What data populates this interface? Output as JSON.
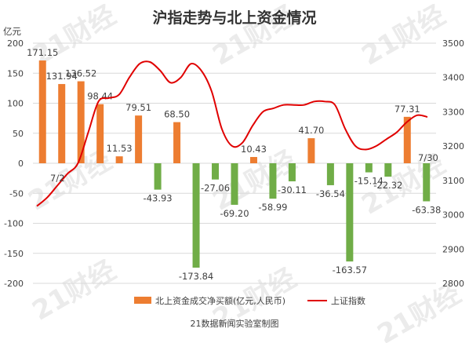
{
  "chart_data": {
    "type": "bar",
    "title": "沪指走势与北上资金情况",
    "source": "21数据新闻实验室制图",
    "watermark": "21财经",
    "left_axis": {
      "unit_label": "亿元",
      "ylim": [
        -200,
        200
      ],
      "ticks": [
        200,
        150,
        100,
        50,
        0,
        -50,
        -100,
        -150,
        -200
      ],
      "tick_labels": [
        "200",
        "150",
        "100",
        "50",
        "0",
        "-50",
        "-100",
        "-150",
        "-200"
      ]
    },
    "right_axis": {
      "ylim": [
        2800,
        3500
      ],
      "ticks": [
        3500,
        3400,
        3300,
        3200,
        3100,
        3000,
        2900,
        2800
      ],
      "tick_labels": [
        "3500",
        "3400",
        "3300",
        "3200",
        "3100",
        "3000",
        "2900",
        "2800"
      ]
    },
    "series": [
      {
        "name": "北上资金成交净买额(亿元,人民币)",
        "kind": "bar",
        "axis": "left",
        "values": [
          171.15,
          131.94,
          136.52,
          98.44,
          11.53,
          79.51,
          -43.93,
          68.5,
          -173.84,
          -27.06,
          -69.2,
          10.43,
          -58.99,
          -30.11,
          41.7,
          -36.54,
          -163.57,
          -15.14,
          -22.32,
          77.31,
          -63.38
        ],
        "labels": [
          "171.15",
          "131.94",
          "136.52",
          "98.44",
          "11.53",
          "79.51",
          "-43.93",
          "68.50",
          "-173.84",
          "-27.06",
          "-69.20",
          "10.43",
          "-58.99",
          "-30.11",
          "41.70",
          "-36.54",
          "-163.57",
          "-15.14",
          "-22.32",
          "77.31",
          "-63.38"
        ]
      },
      {
        "name": "上证指数",
        "kind": "line",
        "axis": "right",
        "values": [
          3025,
          3050,
          3085,
          3120,
          3150,
          3240,
          3330,
          3340,
          3350,
          3400,
          3440,
          3445,
          3420,
          3385,
          3400,
          3440,
          3420,
          3360,
          3250,
          3200,
          3210,
          3260,
          3300,
          3310,
          3320,
          3320,
          3320,
          3330,
          3330,
          3320,
          3250,
          3200,
          3190,
          3200,
          3220,
          3240,
          3270,
          3290,
          3285
        ]
      }
    ],
    "annotations": [
      {
        "text": "7/2",
        "near": "line-start"
      },
      {
        "text": "7/30",
        "near": "line-end"
      }
    ],
    "colors": {
      "positive_bar": "#ED7D31",
      "negative_bar": "#70AD47",
      "line": "#E00000",
      "grid": "#D9D9D9",
      "text": "#404040",
      "watermark": "#EBEBEB"
    },
    "legend": {
      "placement": "bottom",
      "items": [
        "北上资金成交净买额(亿元,人民币)",
        "上证指数"
      ]
    },
    "grid": true
  }
}
